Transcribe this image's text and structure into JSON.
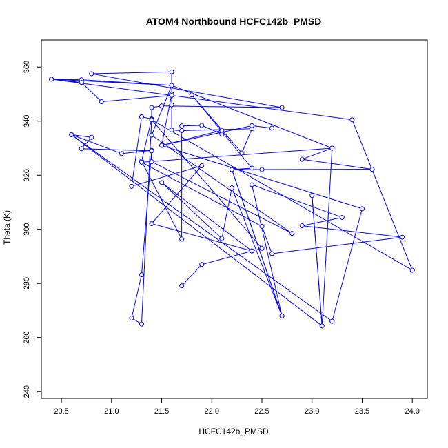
{
  "chart_data": {
    "type": "line",
    "title": "ATOM4 Northbound HCFC142b_PMSD",
    "xlabel": "HCFC142b_PMSD",
    "ylabel": "Theta (K)",
    "xlim": [
      20.3,
      24.15
    ],
    "ylim": [
      237.5,
      370
    ],
    "xticks": [
      20.5,
      21.0,
      21.5,
      22.0,
      22.5,
      23.0,
      23.5,
      24.0
    ],
    "xtick_labels": [
      "20.5",
      "21.0",
      "21.5",
      "22.0",
      "22.5",
      "23.0",
      "23.5",
      "24.0"
    ],
    "yticks": [
      240,
      260,
      280,
      300,
      320,
      340,
      360
    ],
    "ytick_labels": [
      "240",
      "260",
      "280",
      "300",
      "320",
      "340",
      "360"
    ],
    "grid": false,
    "series": [
      {
        "color": "#0000ff",
        "marker": "open-circle",
        "points": [
          [
            21.7,
            279.1
          ],
          [
            21.9,
            287.0
          ],
          [
            22.4,
            292.0
          ],
          [
            21.4,
            302.1
          ],
          [
            21.9,
            323.5
          ],
          [
            21.2,
            315.9
          ],
          [
            21.3,
            341.6
          ],
          [
            21.4,
            340.8
          ],
          [
            21.3,
            325.2
          ],
          [
            21.7,
            296.4
          ],
          [
            21.7,
            338.2
          ],
          [
            21.9,
            338.4
          ],
          [
            22.1,
            335.2
          ],
          [
            22.1,
            336.6
          ],
          [
            21.5,
            331.0
          ],
          [
            21.6,
            350.0
          ],
          [
            21.6,
            358.2
          ],
          [
            20.8,
            357.5
          ],
          [
            22.7,
            345.0
          ],
          [
            21.5,
            345.6
          ],
          [
            21.4,
            345.0
          ],
          [
            21.4,
            340.8
          ],
          [
            21.3,
            265.0
          ],
          [
            21.2,
            267.2
          ],
          [
            21.3,
            283.2
          ],
          [
            21.4,
            329.2
          ],
          [
            21.1,
            328.0
          ],
          [
            20.6,
            335.0
          ],
          [
            20.8,
            334.0
          ],
          [
            20.7,
            329.8
          ],
          [
            21.4,
            329.0
          ],
          [
            21.4,
            325.0
          ],
          [
            22.8,
            298.5
          ],
          [
            21.4,
            334.8
          ],
          [
            21.6,
            353.2
          ],
          [
            20.7,
            355.3
          ],
          [
            20.4,
            355.5
          ],
          [
            20.7,
            354.3
          ],
          [
            20.9,
            347.2
          ],
          [
            21.6,
            349.5
          ],
          [
            21.6,
            346.0
          ],
          [
            21.6,
            336.7
          ],
          [
            21.7,
            336.5
          ],
          [
            22.4,
            337.2
          ],
          [
            22.3,
            328.2
          ],
          [
            21.8,
            349.7
          ],
          [
            22.4,
            322.6
          ],
          [
            22.2,
            322.1
          ],
          [
            22.7,
            268.0
          ],
          [
            22.4,
            316.5
          ],
          [
            23.3,
            304.4
          ],
          [
            22.9,
            301.3
          ],
          [
            23.9,
            297.1
          ],
          [
            22.6,
            291.0
          ],
          [
            22.5,
            301.1
          ],
          [
            21.3,
            324.8
          ],
          [
            23.2,
            330.0
          ],
          [
            21.6,
            353.2
          ],
          [
            20.4,
            355.5
          ],
          [
            23.4,
            340.5
          ],
          [
            24.0,
            284.9
          ],
          [
            21.4,
            340.5
          ],
          [
            22.5,
            293.0
          ],
          [
            22.4,
            292.0
          ],
          [
            21.5,
            317.3
          ],
          [
            22.1,
            296.6
          ],
          [
            22.2,
            315.3
          ],
          [
            22.7,
            268.0
          ],
          [
            22.2,
            322.1
          ],
          [
            22.5,
            322.1
          ],
          [
            23.6,
            322.2
          ],
          [
            22.9,
            325.9
          ],
          [
            23.2,
            330.0
          ],
          [
            23.1,
            264.3
          ],
          [
            23.0,
            312.5
          ],
          [
            23.1,
            264.3
          ],
          [
            20.6,
            335.0
          ],
          [
            23.2,
            266.0
          ],
          [
            23.5,
            307.6
          ],
          [
            21.5,
            331.0
          ],
          [
            22.4,
            338.3
          ],
          [
            22.6,
            337.4
          ]
        ]
      }
    ]
  }
}
